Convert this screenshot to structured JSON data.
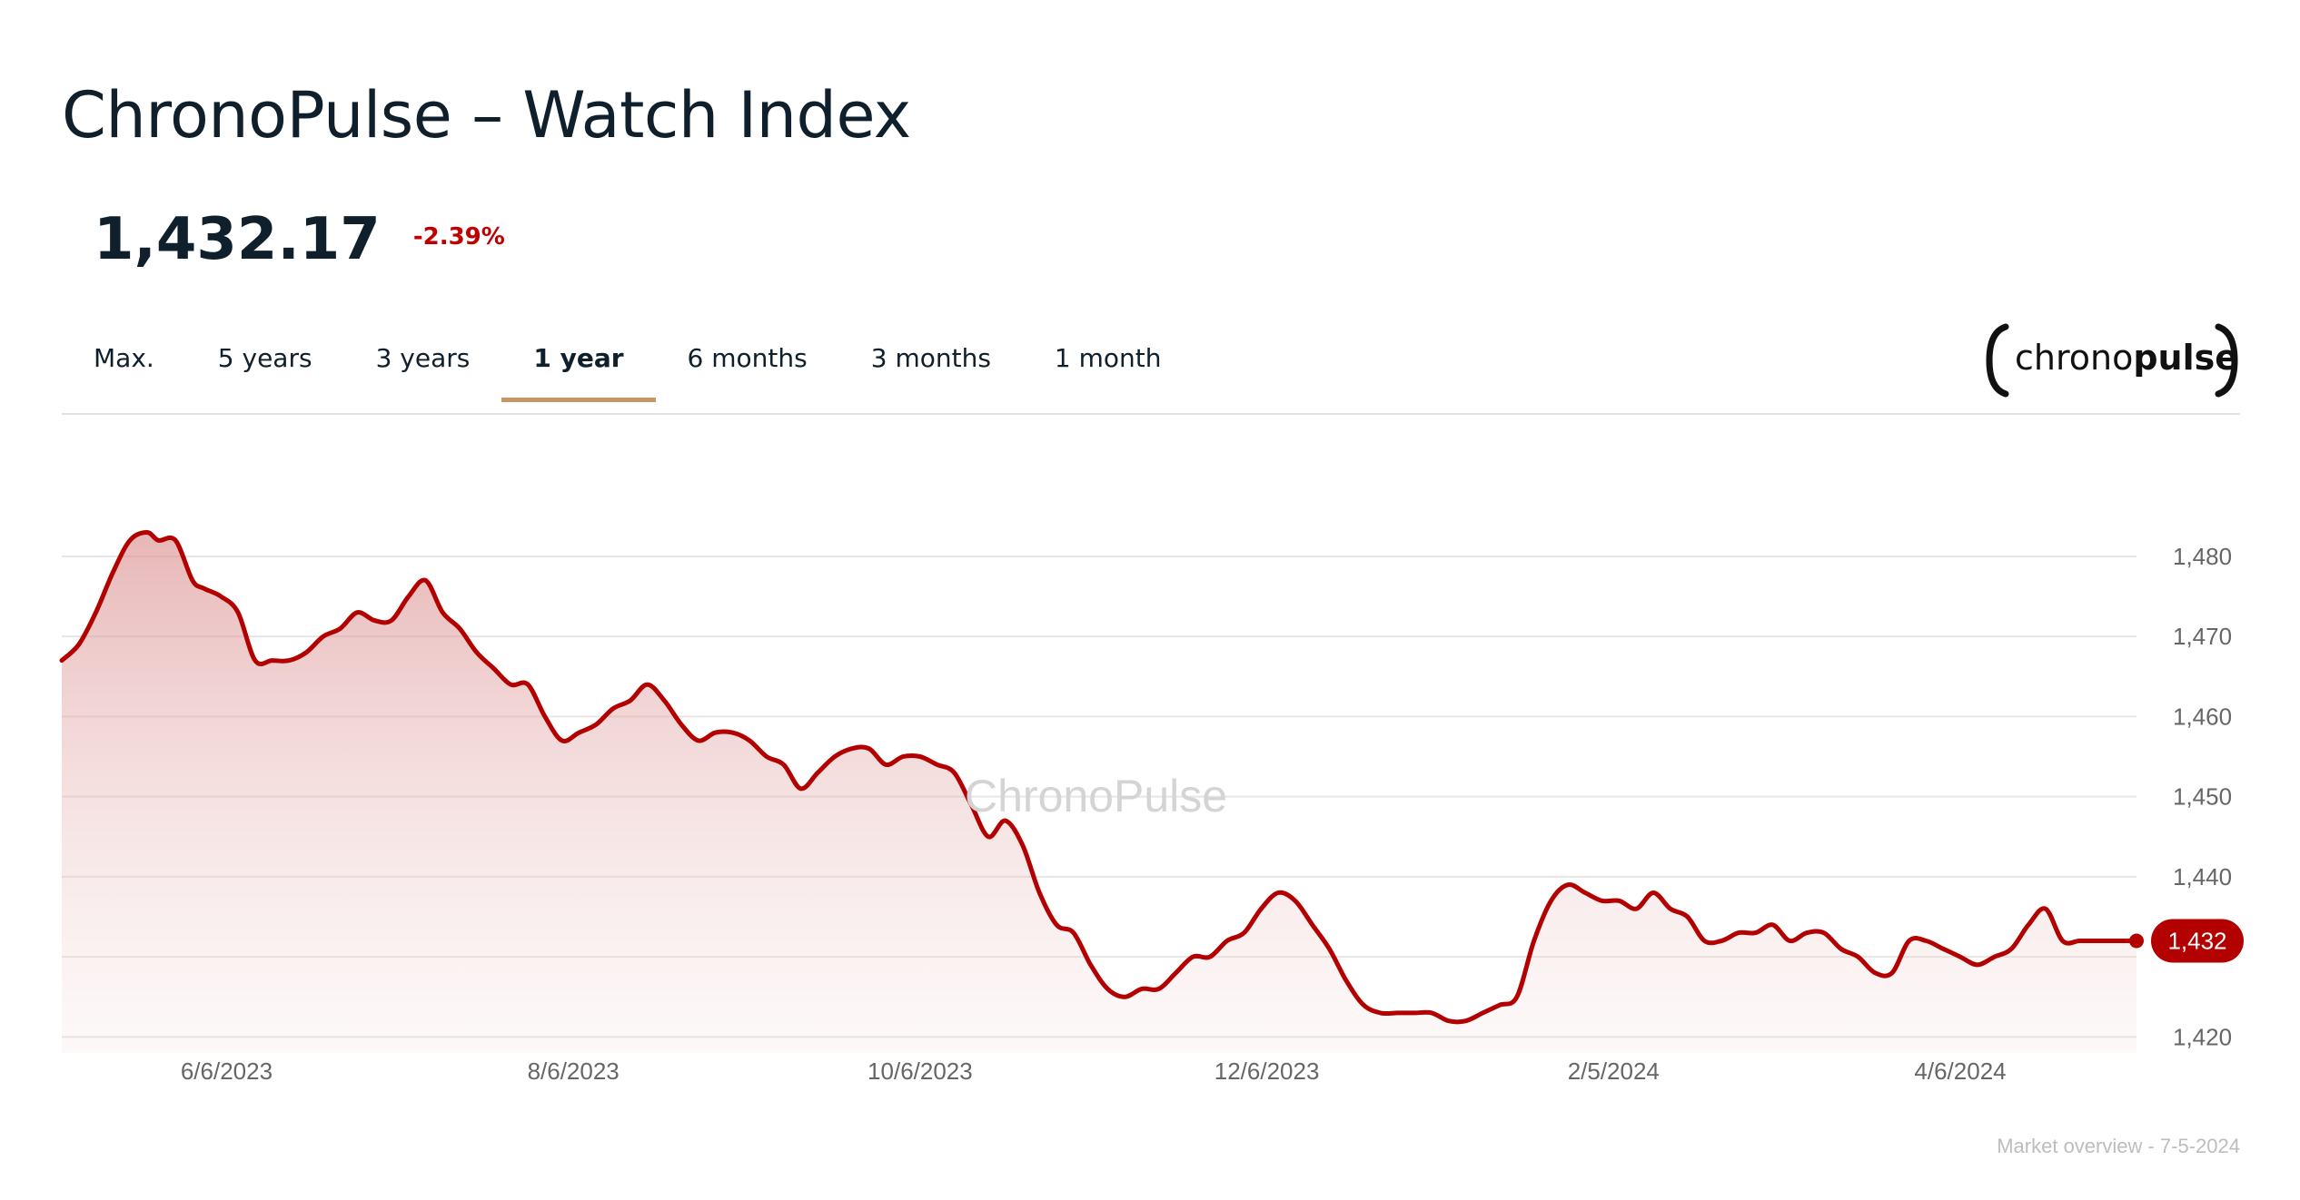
{
  "header": {
    "title": "ChronoPulse – Watch Index",
    "price": "1,432.17",
    "change": "-2.39%"
  },
  "colors": {
    "negative": "#c00000",
    "line": "#b30000",
    "tab_underline": "#c79463"
  },
  "tabs": [
    {
      "label": "Max.",
      "active": false
    },
    {
      "label": "5 years",
      "active": false
    },
    {
      "label": "3 years",
      "active": false
    },
    {
      "label": "1 year",
      "active": true
    },
    {
      "label": "6 months",
      "active": false
    },
    {
      "label": "3 months",
      "active": false
    },
    {
      "label": "1 month",
      "active": false
    }
  ],
  "logo": {
    "brand_light": "chrono",
    "brand_bold": "pulse",
    "icon": "bracket-logo-icon"
  },
  "watermark": "ChronoPulse",
  "footer": "Market overview - 7-5-2024",
  "chart_data": {
    "type": "area",
    "x_range": [
      "2023-05-08",
      "2024-05-07"
    ],
    "ylim": [
      1418,
      1486
    ],
    "y_ticks": [
      1420,
      1430,
      1440,
      1450,
      1460,
      1470,
      1480
    ],
    "y_tick_labels": [
      "1,420",
      "",
      "1,440",
      "1,450",
      "1,460",
      "1,470",
      "1,480"
    ],
    "x_ticks": [
      "2023-06-06",
      "2023-08-06",
      "2023-10-06",
      "2023-12-06",
      "2024-02-05",
      "2024-04-06"
    ],
    "x_tick_labels": [
      "6/6/2023",
      "8/6/2023",
      "10/6/2023",
      "12/6/2023",
      "2/5/2024",
      "4/6/2024"
    ],
    "last_value_label": "1,432",
    "grid": true,
    "series": [
      {
        "x": [
          "2023-05-08",
          "2023-05-11",
          "2023-05-14",
          "2023-05-17",
          "2023-05-20",
          "2023-05-23",
          "2023-05-25",
          "2023-05-28",
          "2023-05-31",
          "2023-06-02",
          "2023-06-05",
          "2023-06-08",
          "2023-06-11",
          "2023-06-14",
          "2023-06-17",
          "2023-06-20",
          "2023-06-23",
          "2023-06-26",
          "2023-06-29",
          "2023-07-02",
          "2023-07-05",
          "2023-07-08",
          "2023-07-11",
          "2023-07-14",
          "2023-07-17",
          "2023-07-20",
          "2023-07-23",
          "2023-07-26",
          "2023-07-29",
          "2023-08-01",
          "2023-08-04",
          "2023-08-07",
          "2023-08-10",
          "2023-08-13",
          "2023-08-16",
          "2023-08-19",
          "2023-08-22",
          "2023-08-25",
          "2023-08-28",
          "2023-08-31",
          "2023-09-03",
          "2023-09-06",
          "2023-09-09",
          "2023-09-12",
          "2023-09-15",
          "2023-09-18",
          "2023-09-21",
          "2023-09-24",
          "2023-09-27",
          "2023-09-30",
          "2023-10-03",
          "2023-10-06",
          "2023-10-09",
          "2023-10-12",
          "2023-10-15",
          "2023-10-18",
          "2023-10-21",
          "2023-10-24",
          "2023-10-27",
          "2023-10-30",
          "2023-11-02",
          "2023-11-05",
          "2023-11-08",
          "2023-11-11",
          "2023-11-14",
          "2023-11-17",
          "2023-11-20",
          "2023-11-23",
          "2023-11-26",
          "2023-11-29",
          "2023-12-02",
          "2023-12-05",
          "2023-12-08",
          "2023-12-11",
          "2023-12-14",
          "2023-12-17",
          "2023-12-20",
          "2023-12-23",
          "2023-12-26",
          "2023-12-29",
          "2024-01-01",
          "2024-01-04",
          "2024-01-07",
          "2024-01-10",
          "2024-01-13",
          "2024-01-16",
          "2024-01-19",
          "2024-01-22",
          "2024-01-25",
          "2024-01-28",
          "2024-01-31",
          "2024-02-03",
          "2024-02-06",
          "2024-02-09",
          "2024-02-12",
          "2024-02-15",
          "2024-02-18",
          "2024-02-21",
          "2024-02-24",
          "2024-02-27",
          "2024-03-01",
          "2024-03-04",
          "2024-03-07",
          "2024-03-10",
          "2024-03-13",
          "2024-03-16",
          "2024-03-19",
          "2024-03-22",
          "2024-03-25",
          "2024-03-28",
          "2024-03-31",
          "2024-04-03",
          "2024-04-06",
          "2024-04-09",
          "2024-04-12",
          "2024-04-15",
          "2024-04-18",
          "2024-04-21",
          "2024-04-24",
          "2024-04-27",
          "2024-04-30",
          "2024-05-03",
          "2024-05-05",
          "2024-05-07"
        ],
        "y": [
          1467,
          1469,
          1473,
          1478,
          1482,
          1483,
          1482,
          1482,
          1477,
          1476,
          1475,
          1473,
          1467,
          1467,
          1467,
          1468,
          1470,
          1471,
          1473,
          1472,
          1472,
          1475,
          1477,
          1473,
          1471,
          1468,
          1466,
          1464,
          1464,
          1460,
          1457,
          1458,
          1459,
          1461,
          1462,
          1464,
          1462,
          1459,
          1457,
          1458,
          1458,
          1457,
          1455,
          1454,
          1451,
          1453,
          1455,
          1456,
          1456,
          1454,
          1455,
          1455,
          1454,
          1453,
          1449,
          1445,
          1447,
          1444,
          1438,
          1434,
          1433,
          1429,
          1426,
          1425,
          1426,
          1426,
          1428,
          1430,
          1430,
          1432,
          1433,
          1436,
          1438,
          1437,
          1434,
          1431,
          1427,
          1424,
          1423,
          1423,
          1423,
          1423,
          1422,
          1422,
          1423,
          1424,
          1425,
          1432,
          1437,
          1439,
          1438,
          1437,
          1437,
          1436,
          1438,
          1436,
          1435,
          1432,
          1432,
          1433,
          1433,
          1434,
          1432,
          1433,
          1433,
          1431,
          1430,
          1428,
          1428,
          1432,
          1432,
          1431,
          1430,
          1429,
          1430,
          1431,
          1434,
          1436,
          1432,
          1432,
          1432,
          1432,
          1432,
          1432
        ]
      }
    ]
  }
}
